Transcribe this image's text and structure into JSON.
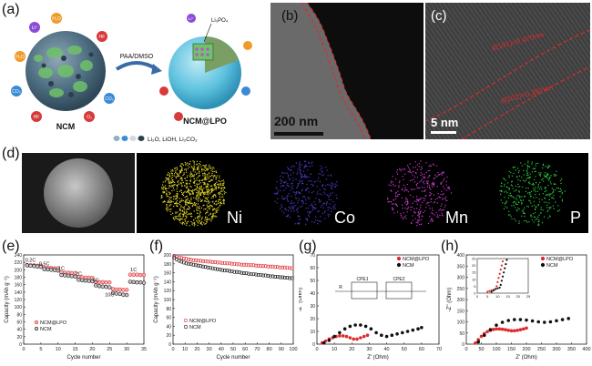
{
  "panels": {
    "a": {
      "label": "(a)",
      "arrow_label": "PAA/DMSO",
      "left_caption": "NCM",
      "right_caption": "NCM@LPO",
      "coating_label": "Li₃PO₄",
      "legend": "Li₂O, LiOH, Li₂CO₃",
      "ion_labels": [
        "Li⁺",
        "Li⁺",
        "H₂O",
        "CO₂",
        "HF",
        "CO₂",
        "H₂O",
        "HF",
        "O₂"
      ]
    },
    "b": {
      "label": "(b)",
      "scale": "200 nm"
    },
    "c": {
      "label": "(c)",
      "spacing1": "d(101)=0.470nm",
      "spacing2": "d(102)=0.397nm",
      "scale": "5 nm"
    },
    "d": {
      "label": "(d)",
      "elements": [
        "Ni",
        "Co",
        "Mn",
        "P"
      ]
    },
    "e": {
      "label": "(e)"
    },
    "f": {
      "label": "(f)"
    },
    "g": {
      "label": "(g)",
      "circuit": {
        "r": "R",
        "cpe1": "CPE1",
        "cpe2": "CPE2"
      }
    },
    "h": {
      "label": "(h)"
    }
  },
  "colors": {
    "ncm_lpo": "#e0282c",
    "ncm": "#111111",
    "ni": "#d8cc2a",
    "co": "#4a3cc8",
    "mn": "#c43ac8",
    "p": "#2ec83a",
    "ncm_lpo_marker_fill": "#f4b5b5",
    "ncm_marker_fill": "#c8c8c8"
  },
  "chart_data": [
    {
      "id": "e",
      "type": "scatter",
      "xlabel": "Cycle number",
      "ylabel": "Capacity (mAh g⁻¹)",
      "xlim": [
        0,
        35
      ],
      "ylim": [
        0,
        240
      ],
      "xticks": [
        0,
        5,
        10,
        15,
        20,
        25,
        30,
        35
      ],
      "yticks": [
        0,
        20,
        40,
        60,
        80,
        100,
        120,
        140,
        160,
        180,
        200,
        220,
        240
      ],
      "rate_labels": [
        {
          "text": "0.2C",
          "x": 2,
          "y": 222
        },
        {
          "text": "0.5C",
          "x": 6,
          "y": 212
        },
        {
          "text": "1C",
          "x": 11,
          "y": 199
        },
        {
          "text": "2C",
          "x": 16,
          "y": 185
        },
        {
          "text": "5C",
          "x": 21,
          "y": 168
        },
        {
          "text": "10C",
          "x": 25,
          "y": 129
        },
        {
          "text": "1C",
          "x": 32,
          "y": 196
        }
      ],
      "legend": [
        "NCM@LPO",
        "NCM"
      ],
      "series": [
        {
          "name": "NCM@LPO",
          "x": [
            1,
            2,
            3,
            4,
            5,
            6,
            7,
            8,
            9,
            10,
            11,
            12,
            13,
            14,
            15,
            16,
            17,
            18,
            19,
            20,
            21,
            22,
            23,
            24,
            25,
            26,
            27,
            28,
            29,
            30,
            31,
            32,
            33,
            34,
            35
          ],
          "values": [
            213,
            212,
            212,
            211,
            211,
            206,
            205,
            205,
            204,
            204,
            193,
            192,
            192,
            191,
            191,
            180,
            180,
            179,
            179,
            178,
            168,
            167,
            167,
            166,
            166,
            148,
            147,
            147,
            146,
            146,
            187,
            187,
            187,
            186,
            186
          ]
        },
        {
          "name": "NCM",
          "x": [
            1,
            2,
            3,
            4,
            5,
            6,
            7,
            8,
            9,
            10,
            11,
            12,
            13,
            14,
            15,
            16,
            17,
            18,
            19,
            20,
            21,
            22,
            23,
            24,
            25,
            26,
            27,
            28,
            29,
            30,
            31,
            32,
            33,
            34,
            35
          ],
          "values": [
            212,
            211,
            210,
            209,
            208,
            202,
            201,
            200,
            199,
            198,
            186,
            185,
            184,
            183,
            182,
            173,
            172,
            171,
            170,
            169,
            158,
            156,
            155,
            154,
            153,
            138,
            136,
            135,
            133,
            132,
            168,
            167,
            166,
            166,
            165
          ]
        }
      ]
    },
    {
      "id": "f",
      "type": "scatter",
      "xlabel": "Cycle number",
      "ylabel": "Capacity (mAh g⁻¹)",
      "xlim": [
        0,
        100
      ],
      "ylim": [
        0,
        200
      ],
      "xticks": [
        0,
        10,
        20,
        30,
        40,
        50,
        60,
        70,
        80,
        90,
        100
      ],
      "yticks": [
        0,
        20,
        40,
        60,
        80,
        100,
        120,
        140,
        160,
        180,
        200
      ],
      "legend": [
        "NCM@LPO",
        "NCM"
      ],
      "series": [
        {
          "name": "NCM@LPO",
          "x": [
            1,
            3,
            5,
            7,
            9,
            11,
            13,
            15,
            17,
            19,
            21,
            23,
            25,
            27,
            29,
            31,
            33,
            35,
            37,
            39,
            41,
            43,
            45,
            47,
            49,
            51,
            53,
            55,
            57,
            59,
            61,
            63,
            65,
            67,
            69,
            71,
            73,
            75,
            77,
            79,
            81,
            83,
            85,
            87,
            89,
            91,
            93,
            95,
            97,
            99
          ],
          "values": [
            198,
            196,
            194,
            193,
            192,
            191,
            190,
            189,
            188,
            188,
            187,
            187,
            186,
            186,
            185,
            185,
            184,
            184,
            183,
            183,
            182,
            182,
            181,
            181,
            180,
            180,
            179,
            179,
            178,
            178,
            178,
            177,
            177,
            177,
            176,
            176,
            175,
            175,
            175,
            174,
            174,
            174,
            173,
            173,
            172,
            172,
            172,
            171,
            171,
            170
          ]
        },
        {
          "name": "NCM",
          "x": [
            1,
            3,
            5,
            7,
            9,
            11,
            13,
            15,
            17,
            19,
            21,
            23,
            25,
            27,
            29,
            31,
            33,
            35,
            37,
            39,
            41,
            43,
            45,
            47,
            49,
            51,
            53,
            55,
            57,
            59,
            61,
            63,
            65,
            67,
            69,
            71,
            73,
            75,
            77,
            79,
            81,
            83,
            85,
            87,
            89,
            91,
            93,
            95,
            97,
            99
          ],
          "values": [
            194,
            190,
            187,
            185,
            183,
            181,
            180,
            179,
            178,
            177,
            176,
            175,
            174,
            173,
            172,
            171,
            170,
            169,
            168,
            167,
            166,
            165,
            165,
            164,
            163,
            162,
            162,
            161,
            160,
            159,
            159,
            158,
            157,
            157,
            156,
            155,
            155,
            154,
            154,
            153,
            152,
            152,
            151,
            151,
            150,
            150,
            149,
            149,
            148,
            148
          ]
        }
      ]
    },
    {
      "id": "g",
      "type": "scatter",
      "xlabel": "Z' (Ohm)",
      "ylabel": "-Z'' (Ohm)",
      "xlim": [
        0,
        70
      ],
      "ylim": [
        0,
        70
      ],
      "xticks": [
        0,
        10,
        20,
        30,
        40,
        50,
        60,
        70
      ],
      "yticks": [
        0,
        10,
        20,
        30,
        40,
        50,
        60,
        70
      ],
      "legend": [
        "NCM@LPO",
        "NCM"
      ],
      "series": [
        {
          "name": "NCM@LPO",
          "x": [
            3,
            5,
            7,
            9,
            11,
            13,
            15,
            17,
            19,
            21,
            23,
            25,
            27,
            29
          ],
          "values": [
            1,
            2.5,
            4,
            5,
            6,
            6.5,
            6.5,
            6,
            5,
            4,
            4,
            5,
            6,
            7
          ]
        },
        {
          "name": "NCM",
          "x": [
            4,
            7,
            10,
            13,
            16,
            19,
            22,
            25,
            28,
            31,
            34,
            37,
            40,
            43,
            46,
            49,
            52,
            55,
            58,
            60
          ],
          "values": [
            1,
            3,
            6,
            9,
            12,
            14,
            15,
            15,
            14,
            12,
            9,
            7,
            6,
            7,
            8,
            9,
            10,
            11,
            12,
            13
          ]
        }
      ]
    },
    {
      "id": "h",
      "type": "scatter",
      "xlabel": "Z' (Ohm)",
      "ylabel": "-Z'' (Ohm)",
      "xlim": [
        0,
        400
      ],
      "ylim": [
        0,
        400
      ],
      "xticks": [
        0,
        50,
        100,
        150,
        200,
        250,
        300,
        350,
        400
      ],
      "yticks": [
        0,
        50,
        100,
        150,
        200,
        250,
        300,
        350,
        400
      ],
      "legend": [
        "NCM@LPO",
        "NCM"
      ],
      "series": [
        {
          "name": "NCM@LPO",
          "x": [
            30,
            40,
            50,
            60,
            70,
            80,
            90,
            100,
            110,
            120,
            130,
            140,
            150,
            160,
            170,
            180,
            190,
            200
          ],
          "values": [
            5,
            20,
            35,
            47,
            56,
            62,
            66,
            68,
            68,
            67,
            65,
            62,
            60,
            60,
            62,
            65,
            68,
            72
          ]
        },
        {
          "name": "NCM",
          "x": [
            40,
            60,
            80,
            100,
            120,
            140,
            160,
            180,
            200,
            220,
            240,
            260,
            280,
            300,
            320,
            340
          ],
          "values": [
            10,
            40,
            65,
            85,
            98,
            106,
            110,
            110,
            108,
            104,
            100,
            98,
            100,
            105,
            110,
            115
          ]
        }
      ],
      "inset": {
        "xlim": [
          0,
          25
        ],
        "ylim": [
          0,
          25
        ],
        "xticks": [
          0,
          5,
          10,
          15,
          20,
          25
        ],
        "yticks": [
          0,
          5,
          10,
          15,
          20,
          25
        ],
        "series": [
          {
            "name": "NCM@LPO",
            "x": [
              5,
              6,
              7,
              8,
              9,
              9.5,
              10,
              10.5,
              11,
              11.5,
              12,
              12.5
            ],
            "values": [
              1,
              1.5,
              2,
              2.5,
              3,
              5,
              8,
              11,
              14,
              17,
              20,
              23
            ]
          },
          {
            "name": "NCM",
            "x": [
              7,
              8,
              9,
              10,
              11,
              11.5,
              12,
              12.5,
              13,
              13.5,
              14,
              14.5
            ],
            "values": [
              1,
              2,
              3,
              3.5,
              4,
              6,
              9,
              12,
              15,
              18,
              21,
              24
            ]
          }
        ]
      }
    }
  ]
}
